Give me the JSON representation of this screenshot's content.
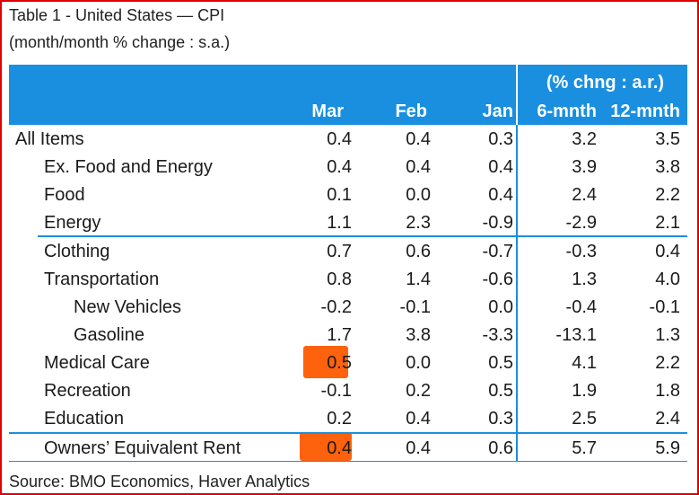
{
  "title": "Table 1 - United States — CPI",
  "subtitle": "(month/month % change : s.a.)",
  "header": {
    "group_label": "(% chng : a.r.)",
    "columns": [
      "Mar",
      "Feb",
      "Jan",
      "6-mnth",
      "12-mnth"
    ]
  },
  "rows": [
    {
      "label": "All Items",
      "indent": 0,
      "values": [
        "0.4",
        "0.4",
        "0.3",
        "3.2",
        "3.5"
      ]
    },
    {
      "label": "Ex. Food and Energy",
      "indent": 1,
      "values": [
        "0.4",
        "0.4",
        "0.4",
        "3.9",
        "3.8"
      ]
    },
    {
      "label": "Food",
      "indent": 1,
      "values": [
        "0.1",
        "0.0",
        "0.4",
        "2.4",
        "2.2"
      ]
    },
    {
      "label": "Energy",
      "indent": 1,
      "values": [
        "1.1",
        "2.3",
        "-0.9",
        "-2.9",
        "2.1"
      ]
    },
    {
      "label": "Clothing",
      "indent": 1,
      "values": [
        "0.7",
        "0.6",
        "-0.7",
        "-0.3",
        "0.4"
      ]
    },
    {
      "label": "Transportation",
      "indent": 1,
      "values": [
        "0.8",
        "1.4",
        "-0.6",
        "1.3",
        "4.0"
      ]
    },
    {
      "label": "New Vehicles",
      "indent": 2,
      "values": [
        "-0.2",
        "-0.1",
        "0.0",
        "-0.4",
        "-0.1"
      ]
    },
    {
      "label": "Gasoline",
      "indent": 2,
      "values": [
        "1.7",
        "3.8",
        "-3.3",
        "-13.1",
        "1.3"
      ]
    },
    {
      "label": "Medical Care",
      "indent": 1,
      "values": [
        "0.5",
        "0.0",
        "0.5",
        "4.1",
        "2.2"
      ]
    },
    {
      "label": "Recreation",
      "indent": 1,
      "values": [
        "-0.1",
        "0.2",
        "0.5",
        "1.9",
        "1.8"
      ]
    },
    {
      "label": "Education",
      "indent": 1,
      "values": [
        "0.2",
        "0.4",
        "0.3",
        "2.5",
        "2.4"
      ]
    },
    {
      "label": "Owners’ Equivalent Rent",
      "indent": 1,
      "values": [
        "0.4",
        "0.4",
        "0.6",
        "5.7",
        "5.9"
      ]
    }
  ],
  "highlight_color": "#ff5a00",
  "accent_color": "#1a8fe0",
  "source": "Source: BMO Economics, Haver Analytics"
}
